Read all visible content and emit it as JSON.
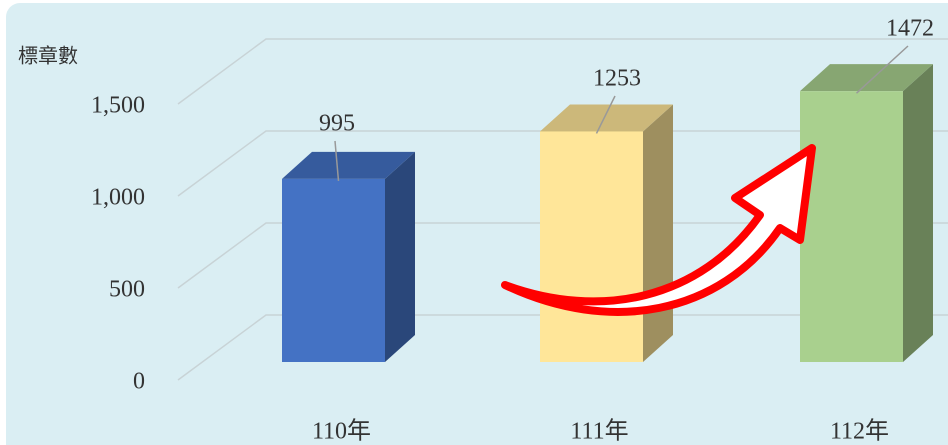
{
  "chart_data": {
    "type": "bar",
    "y_label": "標章數",
    "categories": [
      "110年",
      "111年",
      "112年"
    ],
    "values": [
      995,
      1253,
      1472
    ],
    "colors": [
      "#4472c4",
      "#ffe699",
      "#a9d08e"
    ],
    "ylim": [
      0,
      1500
    ],
    "yticks": [
      0,
      500,
      {
        "value": 1000,
        "label": "1,000"
      },
      {
        "value": 1500,
        "label": "1,500"
      }
    ],
    "grid": true
  }
}
